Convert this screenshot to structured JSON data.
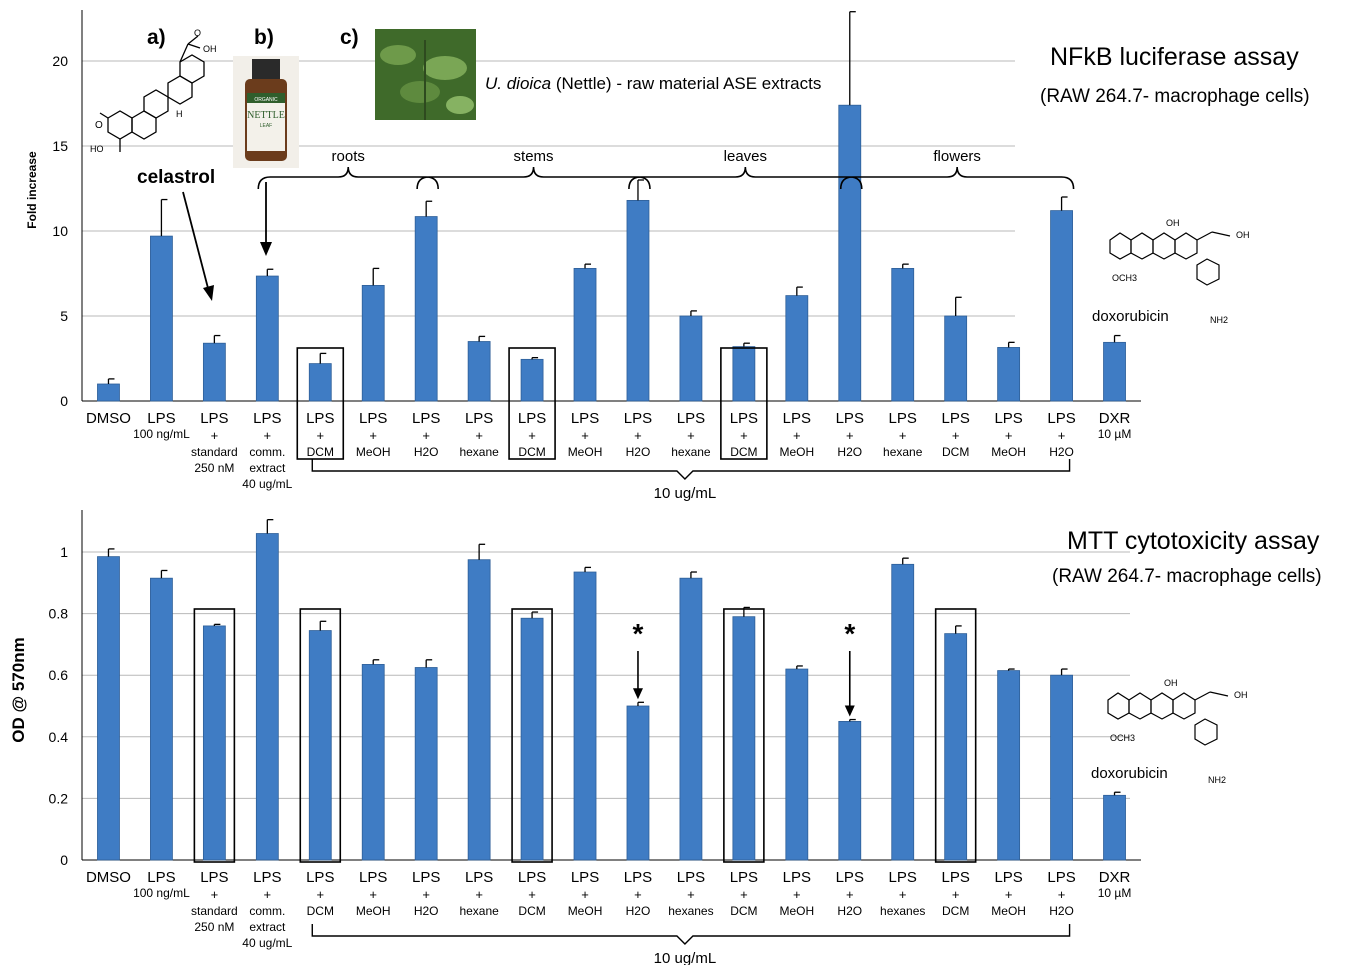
{
  "panel_labels": {
    "a": "a)",
    "b": "b)",
    "c": "c)"
  },
  "compound_labels": {
    "celastrol": "celastrol",
    "doxorubicin": "doxorubicin"
  },
  "nettle_caption": {
    "italic": "U. dioica",
    "rest": " (Nettle) - raw material ASE extracts"
  },
  "bottle": {
    "line1": "ORGANIC",
    "line2": "NETTLE",
    "line3": "LEAF"
  },
  "colors": {
    "bar": "#3f7cc4",
    "bar_edge": "#2e5f98",
    "grid": "#b8b8b8",
    "bottle": "#6b3c1c",
    "photo": "#3f6a2a"
  },
  "star": "*",
  "chart_data": [
    {
      "type": "bar",
      "title": "NFkB luciferase assay",
      "subtitle": "(RAW 264.7- macrophage cells)",
      "ylabel": "Fold increase",
      "ylim": [
        0,
        23
      ],
      "yticks": [
        "0",
        "5",
        "10",
        "15",
        "20"
      ],
      "grid": true,
      "categories": [
        [
          "DMSO"
        ],
        [
          "LPS",
          "100 ng/mL"
        ],
        [
          "LPS",
          "+",
          "standard",
          "250 nM"
        ],
        [
          "LPS",
          "+",
          "comm.",
          "extract",
          "40 ug/mL"
        ],
        [
          "LPS",
          "+",
          "DCM"
        ],
        [
          "LPS",
          "+",
          "MeOH"
        ],
        [
          "LPS",
          "+",
          "H2O"
        ],
        [
          "LPS",
          "+",
          "hexane"
        ],
        [
          "LPS",
          "+",
          "DCM"
        ],
        [
          "LPS",
          "+",
          "MeOH"
        ],
        [
          "LPS",
          "+",
          "H2O"
        ],
        [
          "LPS",
          "+",
          "hexane"
        ],
        [
          "LPS",
          "+",
          "DCM"
        ],
        [
          "LPS",
          "+",
          "MeOH"
        ],
        [
          "LPS",
          "+",
          "H2O"
        ],
        [
          "LPS",
          "+",
          "hexane"
        ],
        [
          "LPS",
          "+",
          "DCM"
        ],
        [
          "LPS",
          "+",
          "MeOH"
        ],
        [
          "LPS",
          "+",
          "H2O"
        ],
        [
          "DXR",
          "10 µM"
        ]
      ],
      "values": [
        1.0,
        9.7,
        3.4,
        7.35,
        2.2,
        6.8,
        10.85,
        3.5,
        2.45,
        7.8,
        11.8,
        5.0,
        3.2,
        6.2,
        17.4,
        7.8,
        5.0,
        3.15,
        11.2,
        3.45
      ],
      "errors": [
        0.3,
        2.15,
        0.45,
        0.4,
        0.6,
        1.0,
        0.9,
        0.3,
        0.1,
        0.25,
        1.2,
        0.3,
        0.2,
        0.5,
        5.5,
        0.25,
        1.1,
        0.3,
        0.8,
        0.4
      ],
      "boxed": [
        4,
        8,
        12
      ],
      "groups": [
        {
          "label": "roots",
          "from": 4,
          "to": 6
        },
        {
          "label": "stems",
          "from": 7,
          "to": 10
        },
        {
          "label": "leaves",
          "from": 11,
          "to": 14
        },
        {
          "label": "flowers",
          "from": 15,
          "to": 18
        }
      ],
      "concentration": {
        "label": "10 ug/mL",
        "from": 4,
        "to": 18
      }
    },
    {
      "type": "bar",
      "title": "MTT cytotoxicity assay",
      "subtitle": "(RAW 264.7- macrophage cells)",
      "ylabel": "OD @ 570nm",
      "ylim": [
        0,
        1.12
      ],
      "yticks": [
        "0",
        "0.2",
        "0.4",
        "0.6",
        "0.8",
        "1"
      ],
      "grid": true,
      "categories": [
        [
          "DMSO"
        ],
        [
          "LPS",
          "100 ng/mL"
        ],
        [
          "LPS",
          "+",
          "standard",
          "250 nM"
        ],
        [
          "LPS",
          "+",
          "comm.",
          "extract",
          "40 ug/mL"
        ],
        [
          "LPS",
          "+",
          "DCM"
        ],
        [
          "LPS",
          "+",
          "MeOH"
        ],
        [
          "LPS",
          "+",
          "H2O"
        ],
        [
          "LPS",
          "+",
          "hexane"
        ],
        [
          "LPS",
          "+",
          "DCM"
        ],
        [
          "LPS",
          "+",
          "MeOH"
        ],
        [
          "LPS",
          "+",
          "H2O"
        ],
        [
          "LPS",
          "+",
          "hexanes"
        ],
        [
          "LPS",
          "+",
          "DCM"
        ],
        [
          "LPS",
          "+",
          "MeOH"
        ],
        [
          "LPS",
          "+",
          "H2O"
        ],
        [
          "LPS",
          "+",
          "hexanes"
        ],
        [
          "LPS",
          "+",
          "DCM"
        ],
        [
          "LPS",
          "+",
          "MeOH"
        ],
        [
          "LPS",
          "+",
          "H2O"
        ],
        [
          "DXR",
          "10 µM"
        ]
      ],
      "values": [
        0.985,
        0.915,
        0.76,
        1.06,
        0.745,
        0.635,
        0.625,
        0.975,
        0.785,
        0.935,
        0.5,
        0.915,
        0.79,
        0.62,
        0.45,
        0.96,
        0.735,
        0.615,
        0.6,
        0.21
      ],
      "errors": [
        0.025,
        0.025,
        0.005,
        0.045,
        0.03,
        0.015,
        0.025,
        0.05,
        0.02,
        0.015,
        0.012,
        0.02,
        0.03,
        0.01,
        0.006,
        0.02,
        0.025,
        0.005,
        0.02,
        0.01
      ],
      "boxed": [
        2,
        4,
        8,
        12,
        16
      ],
      "starred": [
        10,
        14
      ],
      "concentration": {
        "label": "10 ug/mL",
        "from": 4,
        "to": 18
      }
    }
  ]
}
